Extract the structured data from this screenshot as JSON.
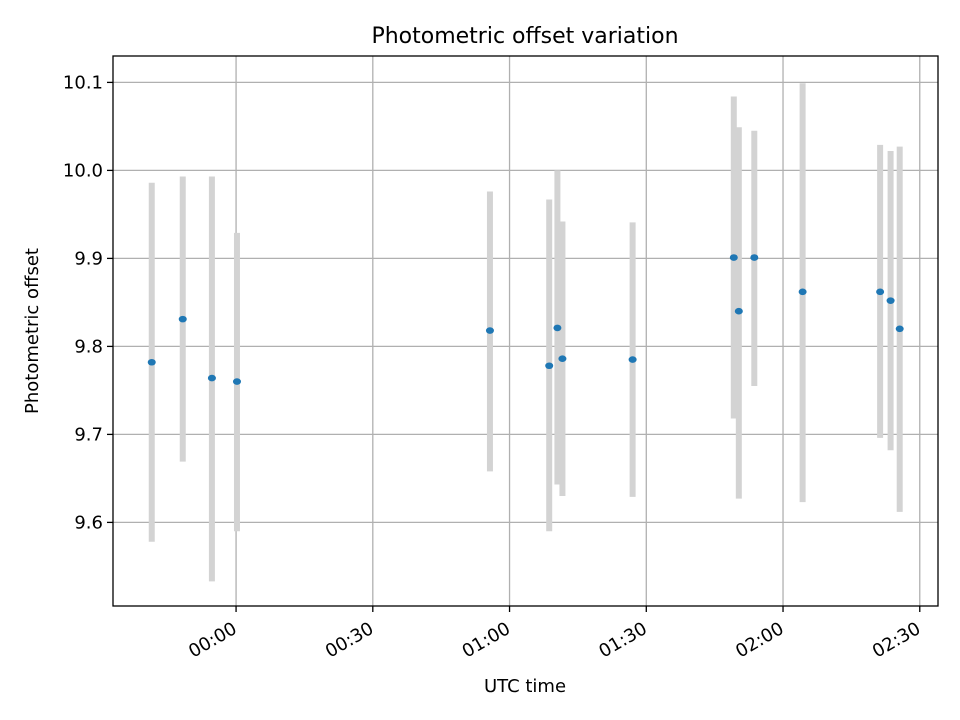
{
  "chart_data": {
    "type": "scatter",
    "title": "Photometric offset variation",
    "xlabel": "UTC time",
    "ylabel": "Photometric offset",
    "x_ticks": [
      {
        "minutes": 0,
        "label": "00:00"
      },
      {
        "minutes": 30,
        "label": "00:30"
      },
      {
        "minutes": 60,
        "label": "01:00"
      },
      {
        "minutes": 90,
        "label": "01:30"
      },
      {
        "minutes": 120,
        "label": "02:00"
      },
      {
        "minutes": 150,
        "label": "02:30"
      }
    ],
    "y_ticks": [
      9.6,
      9.7,
      9.8,
      9.9,
      10.0,
      10.1
    ],
    "y_tick_labels": [
      "9.6",
      "9.7",
      "9.8",
      "9.9",
      "10.0",
      "10.1"
    ],
    "xlim": [
      -27,
      154
    ],
    "ylim": [
      9.505,
      10.13
    ],
    "grid": true,
    "point_color": "#1f77b4",
    "errorbar_color": "#d3d3d3",
    "series": [
      {
        "points": [
          {
            "x": -18.5,
            "y": 9.782,
            "low": 9.578,
            "high": 9.986
          },
          {
            "x": -11.7,
            "y": 9.831,
            "low": 9.669,
            "high": 9.993
          },
          {
            "x": -5.3,
            "y": 9.764,
            "low": 9.533,
            "high": 9.993
          },
          {
            "x": 0.2,
            "y": 9.76,
            "low": 9.59,
            "high": 9.929
          },
          {
            "x": 55.7,
            "y": 9.818,
            "low": 9.658,
            "high": 9.976
          },
          {
            "x": 68.7,
            "y": 9.778,
            "low": 9.59,
            "high": 9.967
          },
          {
            "x": 70.5,
            "y": 9.821,
            "low": 9.643,
            "high": 10.0
          },
          {
            "x": 71.6,
            "y": 9.786,
            "low": 9.63,
            "high": 9.942
          },
          {
            "x": 87.0,
            "y": 9.785,
            "low": 9.629,
            "high": 9.941
          },
          {
            "x": 109.2,
            "y": 9.901,
            "low": 9.718,
            "high": 10.084
          },
          {
            "x": 110.3,
            "y": 9.84,
            "low": 9.627,
            "high": 10.049
          },
          {
            "x": 113.7,
            "y": 9.901,
            "low": 9.755,
            "high": 10.045
          },
          {
            "x": 124.3,
            "y": 9.862,
            "low": 9.623,
            "high": 10.099
          },
          {
            "x": 141.3,
            "y": 9.862,
            "low": 9.696,
            "high": 10.029
          },
          {
            "x": 143.6,
            "y": 9.852,
            "low": 9.682,
            "high": 10.022
          },
          {
            "x": 145.6,
            "y": 9.82,
            "low": 9.612,
            "high": 10.027
          }
        ]
      }
    ]
  }
}
